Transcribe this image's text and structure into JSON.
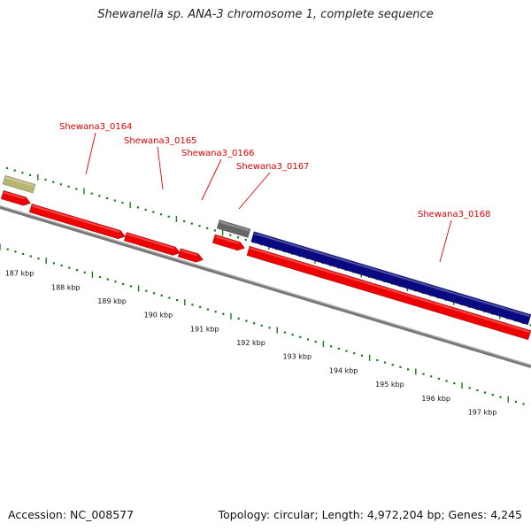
{
  "title": "Shewanella sp. ANA-3 chromosome 1, complete sequence",
  "footer": {
    "accession": "Accession: NC_008577",
    "topology": "Topology: circular; Length: 4,972,204 bp; Genes: 4,245"
  },
  "colors": {
    "gene_forward": "#ee0000",
    "gene_dark_blue": "#0a0a80",
    "gene_gray": "#666666",
    "gene_olive": "#b8b56e",
    "backbone": "#777777",
    "ticks": "#1a7a1a",
    "label": "#e00000"
  },
  "gene_labels": [
    "Shewana3_0164",
    "Shewana3_0165",
    "Shewana3_0166",
    "Shewana3_0167",
    "Shewana3_0168"
  ],
  "kbp_labels": [
    "187 kbp",
    "188 kbp",
    "189 kbp",
    "190 kbp",
    "191 kbp",
    "192 kbp",
    "193 kbp",
    "194 kbp",
    "195 kbp",
    "196 kbp",
    "197 kbp"
  ]
}
